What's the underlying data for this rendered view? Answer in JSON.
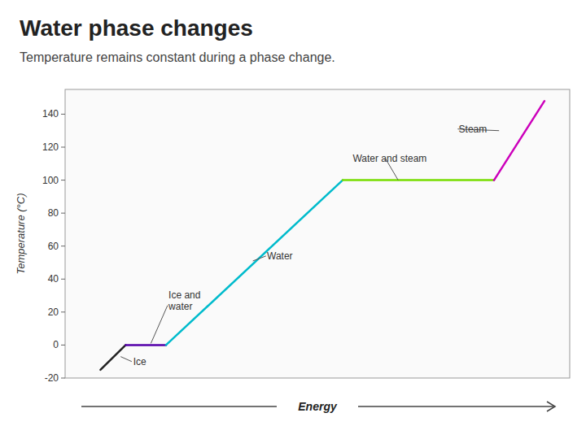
{
  "chart_data": {
    "type": "line",
    "title": "Water phase changes",
    "subtitle": "Temperature remains constant during a phase change.",
    "x_label": "Energy",
    "y_label": "Temperature (°C)",
    "xlim": [
      0,
      10
    ],
    "ylim": [
      -20,
      155
    ],
    "yticks": [
      -20,
      0,
      20,
      40,
      60,
      80,
      100,
      120,
      140
    ],
    "tick_labels": "y",
    "grid": false,
    "series": [
      {
        "color": "#222222",
        "x": [
          0.7,
          1.2
        ],
        "values": [
          -15,
          0
        ]
      },
      {
        "color": "#5500aa",
        "x": [
          1.2,
          2.0
        ],
        "values": [
          0,
          0
        ]
      },
      {
        "color": "#00bbcc",
        "x": [
          2.0,
          5.5
        ],
        "values": [
          0,
          100
        ]
      },
      {
        "color": "#77dd00",
        "x": [
          5.5,
          8.5
        ],
        "values": [
          100,
          100
        ]
      },
      {
        "color": "#cc00bb",
        "x": [
          8.5,
          9.5
        ],
        "values": [
          100,
          148
        ]
      }
    ],
    "annotations": [
      {
        "text": "Ice",
        "x": 1.35,
        "y": -10,
        "arrow": {
          "x": [
            1.32,
            1.1
          ],
          "y": [
            -10,
            -7
          ]
        }
      },
      {
        "text": "Ice and\nwater",
        "x": 2.05,
        "y": 27,
        "arrow": {
          "x": [
            2.03,
            1.7
          ],
          "y": [
            24,
            1
          ]
        }
      },
      {
        "text": "Water",
        "x": 4.0,
        "y": 54,
        "arrow": {
          "x": [
            3.98,
            3.72
          ],
          "y": [
            54,
            51
          ]
        }
      },
      {
        "text": "Water and steam",
        "x": 5.7,
        "y": 113,
        "arrow": {
          "x": [
            6.35,
            6.6
          ],
          "y": [
            113,
            100
          ]
        }
      },
      {
        "text": "Steam",
        "x": 7.8,
        "y": 131,
        "arrow": {
          "x": [
            7.78,
            8.6
          ],
          "y": [
            131,
            130
          ]
        }
      }
    ]
  }
}
